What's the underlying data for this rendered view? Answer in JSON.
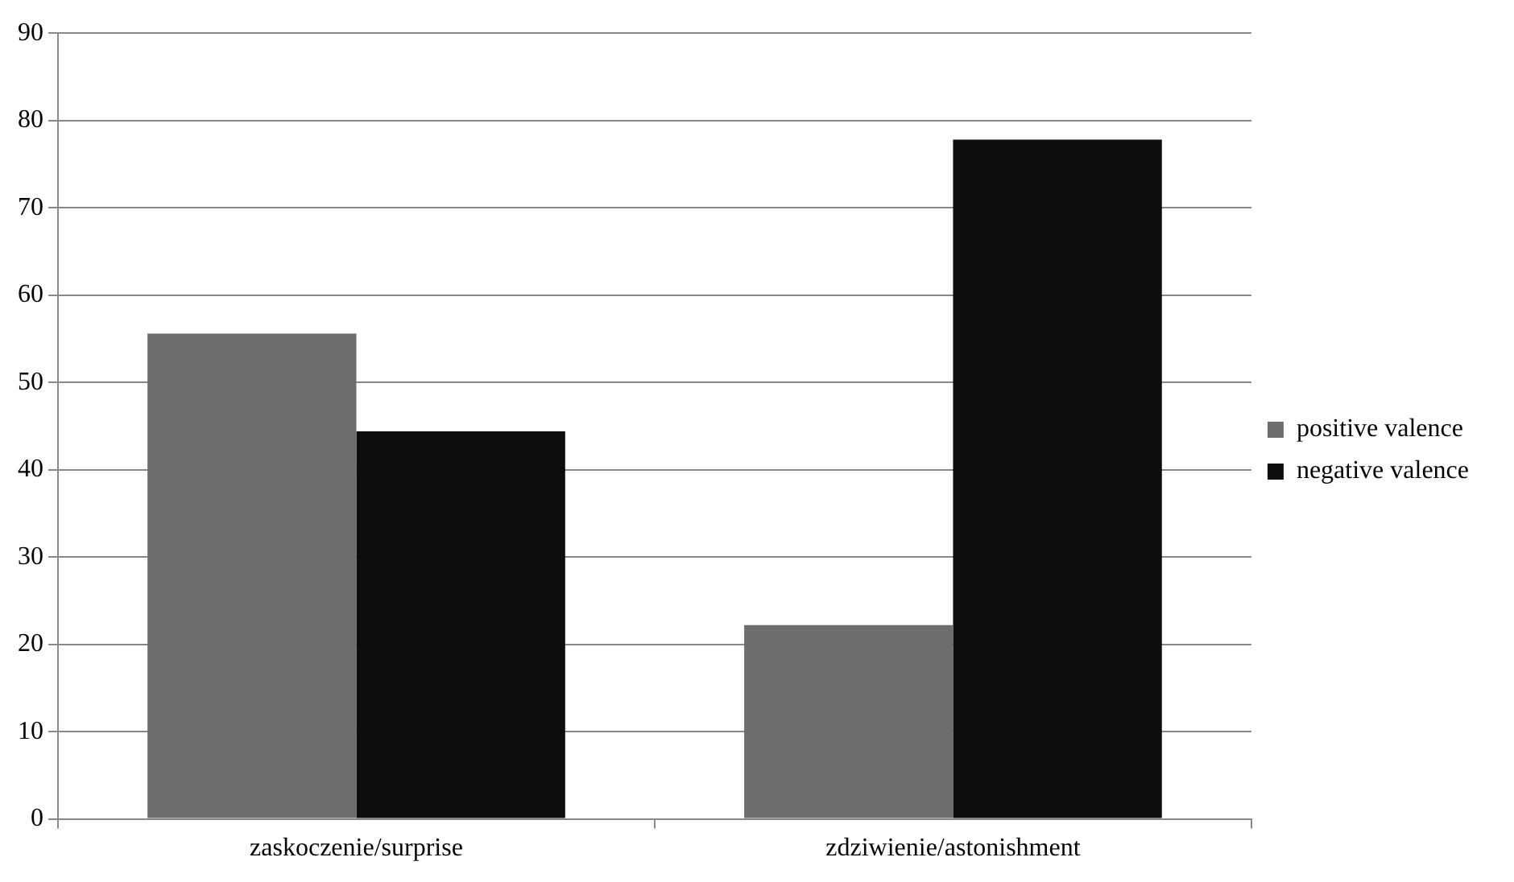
{
  "chart_data": {
    "type": "bar",
    "categories": [
      "zaskoczenie/surprise",
      "zdziwienie/astonishment"
    ],
    "series": [
      {
        "name": "positive valence",
        "color": "#6d6d6d",
        "values": [
          55.6,
          22.2
        ]
      },
      {
        "name": "negative valence",
        "color": "#0d0d0d",
        "values": [
          44.4,
          77.8
        ]
      }
    ],
    "ylim": [
      0,
      90
    ],
    "yticks": [
      0,
      10,
      20,
      30,
      40,
      50,
      60,
      70,
      80,
      90
    ],
    "grid": "y",
    "legend": "right"
  }
}
